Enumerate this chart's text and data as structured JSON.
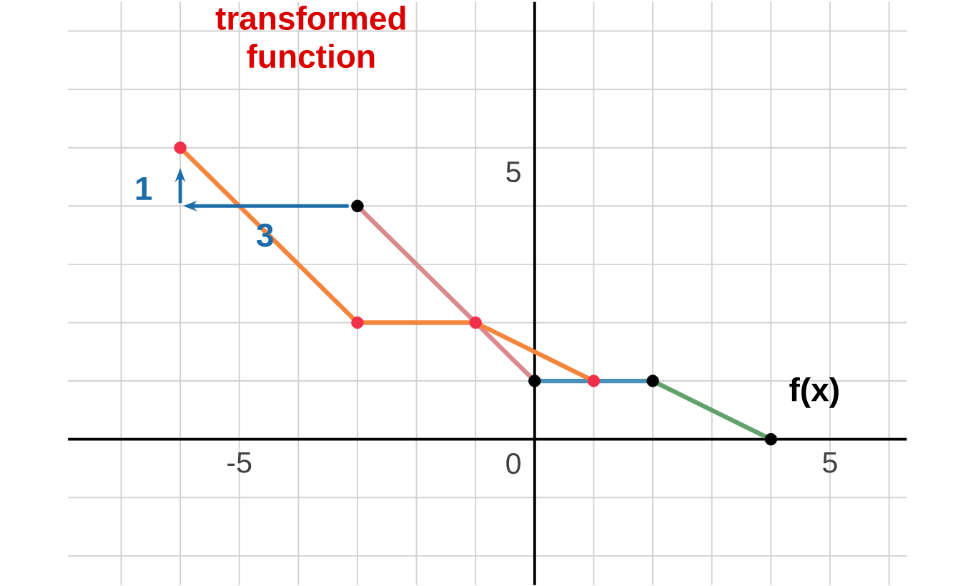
{
  "chart_data": {
    "type": "line",
    "xlim": [
      -7.9,
      6.3
    ],
    "ylim": [
      -2.5,
      7.5
    ],
    "xticks": [
      {
        "value": -7,
        "label": null
      },
      {
        "value": -6,
        "label": null
      },
      -5,
      {
        "value": -4,
        "label": null
      },
      {
        "value": -3,
        "label": null
      },
      {
        "value": -2,
        "label": null
      },
      {
        "value": -1,
        "label": null
      },
      {
        "value": 0,
        "label": null
      },
      {
        "value": 1,
        "label": null
      },
      {
        "value": 2,
        "label": null
      },
      {
        "value": 3,
        "label": null
      },
      {
        "value": 4,
        "label": null
      },
      5,
      {
        "value": 6,
        "label": null
      }
    ],
    "yticks": [
      {
        "value": -2,
        "label": null
      },
      {
        "value": -1,
        "label": null
      },
      0,
      {
        "value": 1,
        "label": null
      },
      {
        "value": 2,
        "label": null
      },
      {
        "value": 3,
        "label": null
      },
      {
        "value": 4,
        "label": null
      },
      5,
      {
        "value": 6,
        "label": null
      },
      {
        "value": 7,
        "label": null
      }
    ],
    "grid": true,
    "series": [
      {
        "color": "#d98a8f",
        "x": [
          -3,
          0
        ],
        "values": [
          4,
          1
        ]
      },
      {
        "color": "#4a90b8",
        "x": [
          0,
          2
        ],
        "values": [
          1,
          1
        ]
      },
      {
        "color": "#5fa36b",
        "x": [
          2,
          4
        ],
        "values": [
          1,
          0
        ]
      },
      {
        "type": "scatter",
        "marker": "circle",
        "color": "#000000",
        "x": [
          -3,
          0,
          2,
          4
        ],
        "values": [
          4,
          1,
          1,
          0
        ]
      },
      {
        "color": "#f5843c",
        "x": [
          -6,
          -3,
          -1,
          1
        ],
        "values": [
          5,
          2,
          2,
          1
        ]
      },
      {
        "type": "scatter",
        "marker": "circle",
        "color": "#f0304a",
        "x": [
          -6,
          -3,
          -1,
          1
        ],
        "values": [
          5,
          2,
          2,
          1
        ]
      }
    ],
    "annotations": [
      "transformed function",
      "f(x)",
      "1",
      "3"
    ]
  }
}
